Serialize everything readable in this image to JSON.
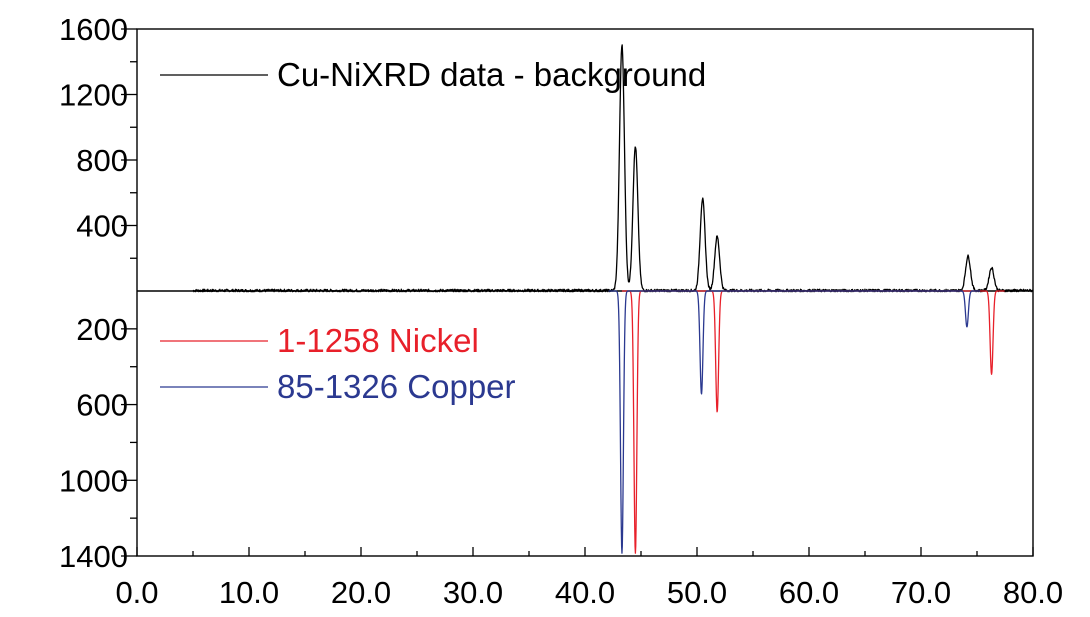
{
  "chart_data": {
    "type": "line",
    "title": "",
    "xlabel": "",
    "ylabel": "",
    "xlim": [
      0,
      80
    ],
    "x_ticks": [
      "0.0",
      "10.0",
      "20.0",
      "30.0",
      "40.0",
      "50.0",
      "60.0",
      "70.0",
      "80.0"
    ],
    "x_tick_values": [
      0,
      10,
      20,
      30,
      40,
      50,
      60,
      70,
      80
    ],
    "y_upper": {
      "ylim": [
        0,
        1600
      ],
      "ticks": [
        "1600",
        "1200",
        "800",
        "400"
      ],
      "tick_values": [
        1600,
        1200,
        800,
        400
      ]
    },
    "y_lower": {
      "ylim": [
        0,
        1400
      ],
      "inverted": true,
      "ticks": [
        "200",
        "600",
        "1000",
        "1400"
      ],
      "tick_values": [
        200,
        600,
        1000,
        1400
      ]
    },
    "legend_placement": [
      "top-left",
      "middle-left"
    ],
    "grid": false,
    "series": [
      {
        "name": "Cu-NiXRD data - background",
        "color": "#000000",
        "panel": "upper",
        "noise_level": 12,
        "x_start": 5,
        "peaks": [
          {
            "x": 43.3,
            "y": 1500
          },
          {
            "x": 44.5,
            "y": 880
          },
          {
            "x": 50.5,
            "y": 560
          },
          {
            "x": 51.8,
            "y": 330
          },
          {
            "x": 74.2,
            "y": 210
          },
          {
            "x": 76.3,
            "y": 140
          }
        ]
      },
      {
        "name": "1-1258 Nickel",
        "color": "#e8202a",
        "panel": "lower",
        "peaks": [
          {
            "x": 44.5,
            "y": 1385
          },
          {
            "x": 51.8,
            "y": 640
          },
          {
            "x": 76.3,
            "y": 440
          }
        ]
      },
      {
        "name": "85-1326 Copper",
        "color": "#2b3990",
        "panel": "lower",
        "peaks": [
          {
            "x": 43.3,
            "y": 1385
          },
          {
            "x": 50.4,
            "y": 545
          },
          {
            "x": 74.1,
            "y": 190
          }
        ]
      }
    ]
  }
}
